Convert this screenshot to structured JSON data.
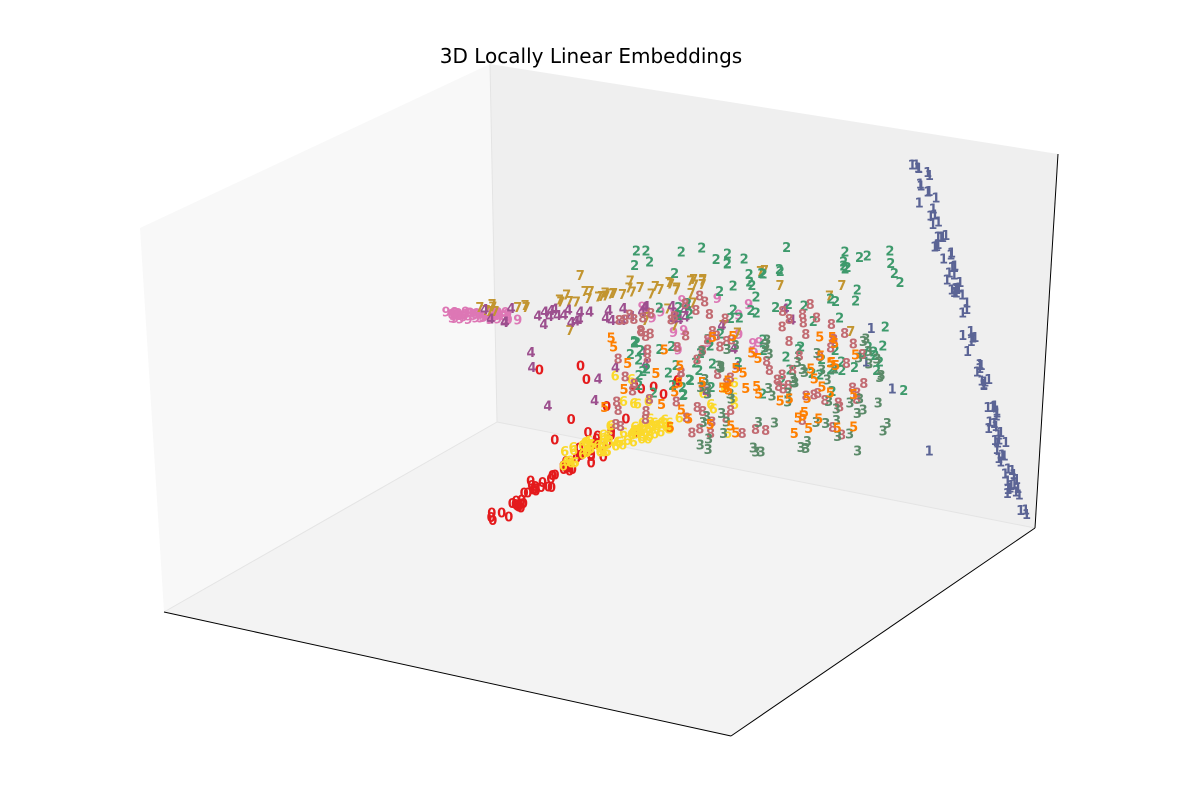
{
  "chart_data": {
    "type": "scatter",
    "projection": "3d",
    "title": "3D Locally Linear Embeddings",
    "xlabel": "",
    "ylabel": "",
    "zlabel": "",
    "grid": false,
    "ticks": false,
    "marker": "digit-text",
    "colors": {
      "0": "#e41a1c",
      "1": "#5b6495",
      "2": "#3e9a6c",
      "3": "#5b8a69",
      "4": "#9c4f8e",
      "5": "#ff7f00",
      "6": "#fbd92a",
      "7": "#c29530",
      "8": "#c26b72",
      "9": "#dd77b5"
    },
    "clusters": [
      {
        "digit": "0",
        "count": 55,
        "from": [
          495,
          522
        ],
        "to": [
          605,
          445
        ],
        "spread": 9,
        "extra": 18,
        "extra_box": [
          535,
          360,
          680,
          470
        ]
      },
      {
        "digit": "6",
        "count": 75,
        "from": [
          570,
          462
        ],
        "to": [
          665,
          428
        ],
        "spread": 9,
        "extra": 18,
        "extra_box": [
          590,
          380,
          740,
          440
        ]
      },
      {
        "digit": "1",
        "count": 95,
        "from": [
          918,
          166
        ],
        "to": [
          1022,
          518
        ],
        "spread": 7,
        "extra": 6,
        "extra_box": [
          860,
          200,
          960,
          485
        ]
      },
      {
        "digit": "9",
        "count": 45,
        "from": [
          450,
          320
        ],
        "to": [
          520,
          321
        ],
        "spread": 4,
        "extra": 18,
        "extra_box": [
          560,
          300,
          760,
          360
        ]
      },
      {
        "digit": "7",
        "count": 38,
        "from": [
          470,
          315
        ],
        "to": [
          712,
          287
        ],
        "spread": 5,
        "extra": 20,
        "extra_box": [
          560,
          270,
          860,
          340
        ]
      },
      {
        "digit": "4",
        "count": 35,
        "from": [
          480,
          322
        ],
        "to": [
          700,
          318
        ],
        "spread": 9,
        "extra": 14,
        "extra_box": [
          530,
          290,
          800,
          420
        ]
      },
      {
        "digit": "2",
        "count": 0,
        "from": [
          700,
          300
        ],
        "to": [
          700,
          300
        ],
        "spread": 0,
        "extra": 110,
        "extra_box": [
          630,
          250,
          905,
          400
        ]
      },
      {
        "digit": "8",
        "count": 0,
        "from": [
          640,
          330
        ],
        "to": [
          640,
          330
        ],
        "spread": 0,
        "extra": 100,
        "extra_box": [
          615,
          300,
          865,
          440
        ]
      },
      {
        "digit": "3",
        "count": 0,
        "from": [
          760,
          380
        ],
        "to": [
          760,
          380
        ],
        "spread": 0,
        "extra": 70,
        "extra_box": [
          700,
          340,
          890,
          460
        ]
      },
      {
        "digit": "5",
        "count": 0,
        "from": [
          650,
          380
        ],
        "to": [
          650,
          380
        ],
        "spread": 0,
        "extra": 55,
        "extra_box": [
          600,
          340,
          870,
          440
        ]
      }
    ]
  }
}
